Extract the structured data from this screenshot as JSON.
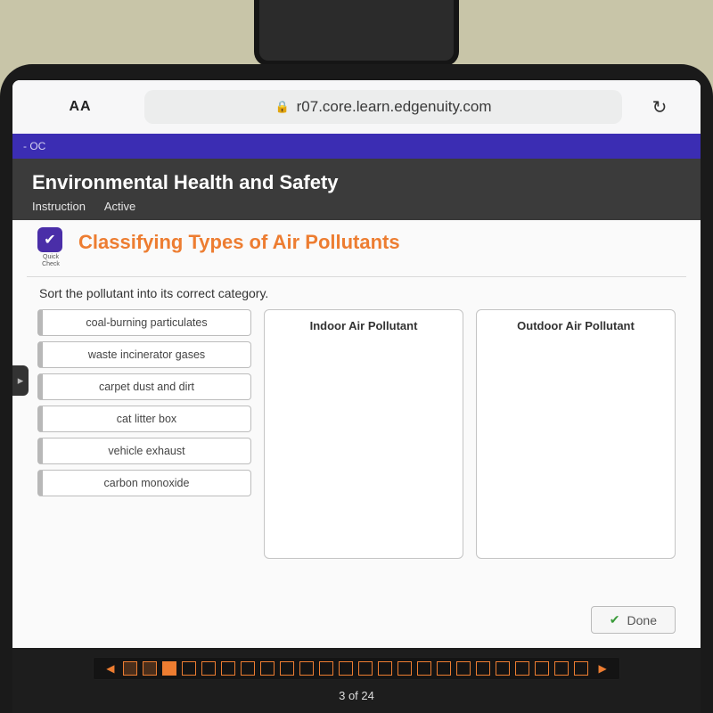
{
  "colors": {
    "desk": "#c8c5a8",
    "bezel": "#1a1a1a",
    "navstrip": "#3b2db3",
    "dark_panel": "#3b3b3b",
    "accent": "#ed7d31",
    "badge": "#4a2ea8",
    "done_check": "#3a9b3a"
  },
  "browser": {
    "aa_label": "AA",
    "url": "r07.core.learn.edgenuity.com",
    "reload_icon": "↻"
  },
  "navstrip": {
    "text": "- OC"
  },
  "course": {
    "title": "Environmental Health and Safety",
    "tab1": "Instruction",
    "tab2": "Active"
  },
  "quickcheck": {
    "label_line1": "Quick",
    "label_line2": "Check",
    "check_glyph": "✔"
  },
  "activity": {
    "title": "Classifying Types of Air Pollutants",
    "prompt": "Sort the pollutant into its correct category.",
    "items": [
      "coal-burning particulates",
      "waste incinerator gases",
      "carpet dust and dirt",
      "cat litter box",
      "vehicle exhaust",
      "carbon monoxide"
    ],
    "dropzones": [
      {
        "title": "Indoor Air Pollutant"
      },
      {
        "title": "Outdoor Air Pollutant"
      }
    ],
    "done_label": "Done"
  },
  "progress": {
    "total": 24,
    "current": 3,
    "filled_indices": [
      0,
      1,
      2
    ],
    "solid_index": 2,
    "page_text": "3 of 24",
    "prev": "◀",
    "next": "▶"
  }
}
